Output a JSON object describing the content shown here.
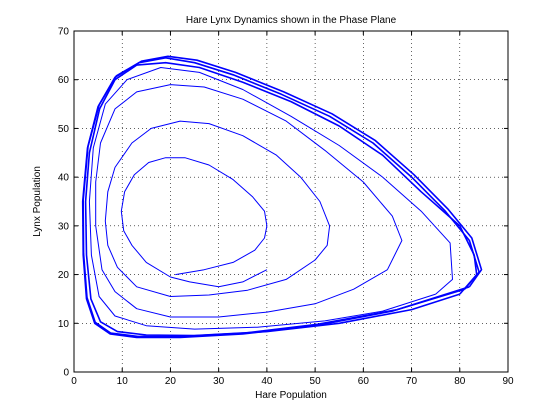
{
  "chart_data": {
    "type": "line",
    "title": "Hare Lynx Dynamics shown in the Phase Plane",
    "xlabel": "Hare Population",
    "ylabel": "Lynx Population",
    "xlim": [
      0,
      90
    ],
    "ylim": [
      0,
      70
    ],
    "xticks": [
      "0",
      "10",
      "20",
      "30",
      "40",
      "50",
      "60",
      "70",
      "80",
      "90"
    ],
    "yticks": [
      "0",
      "10",
      "20",
      "30",
      "40",
      "50",
      "60",
      "70"
    ],
    "grid": "dotted",
    "line_color": "#0000ff",
    "series": [
      {
        "x": [
          21,
          27,
          33,
          37.5,
          39.5,
          40,
          39.5,
          37,
          33,
          28,
          23,
          19,
          15.5,
          12.5,
          10.5,
          9.8,
          10.3,
          12,
          15,
          20,
          24,
          30,
          35,
          40
        ],
        "y": [
          20,
          21,
          22.5,
          25,
          27.5,
          30,
          33,
          36,
          39.5,
          42.5,
          44,
          44,
          43,
          40.5,
          37,
          33,
          29,
          26,
          22.5,
          19.5,
          18.5,
          17.5,
          18.5,
          21
        ]
      },
      {
        "x": [
          50,
          52.5,
          53,
          51,
          47,
          42,
          35,
          28,
          22,
          16,
          12,
          8.5,
          7,
          6.5,
          7,
          9,
          13,
          20,
          28,
          36,
          44,
          50
        ],
        "y": [
          23,
          26,
          30,
          35,
          40,
          44.5,
          48.5,
          51,
          51.5,
          50,
          47,
          42,
          37,
          31,
          26,
          21.5,
          17.5,
          15.5,
          15.8,
          16.8,
          19,
          23
        ]
      },
      {
        "x": [
          65,
          68,
          66,
          60,
          52,
          44,
          35,
          27,
          20,
          13,
          8.5,
          5.5,
          4.5,
          4.5,
          5.8,
          8.5,
          13,
          20,
          30,
          40,
          50,
          58,
          65
        ],
        "y": [
          21,
          27,
          32,
          39,
          45.5,
          51.5,
          56,
          58.5,
          59,
          57.5,
          54,
          47,
          39,
          30,
          21,
          16.5,
          13,
          11.3,
          11.3,
          12.3,
          14,
          17,
          21
        ]
      },
      {
        "x": [
          75,
          78.5,
          78,
          72,
          64,
          55,
          45,
          35,
          26,
          18,
          11,
          6.5,
          4,
          3.2,
          3.6,
          5.2,
          8.5,
          15,
          25,
          38,
          52,
          64,
          75
        ],
        "y": [
          16,
          19,
          26.5,
          33,
          40,
          46.5,
          52.5,
          58,
          61.5,
          62.5,
          60,
          55,
          46,
          35,
          24,
          15.5,
          11.5,
          9.5,
          8.8,
          9.2,
          10.5,
          12.5,
          16
        ]
      },
      {
        "x": [
          80,
          83.5,
          83,
          80,
          72,
          64,
          55,
          45,
          35,
          26,
          19,
          13,
          8.5,
          5.3,
          3.2,
          2.4,
          2.6,
          3.5,
          5.5,
          9,
          15,
          25,
          40,
          55,
          70,
          80
        ],
        "y": [
          16,
          20,
          24,
          30,
          37,
          44.5,
          50.5,
          55.5,
          59.5,
          62.5,
          63.5,
          63,
          60,
          54,
          45,
          35,
          24,
          15,
          10.3,
          8.3,
          7.6,
          7.5,
          8.3,
          10,
          12.8,
          16
        ]
      },
      {
        "x": [
          81,
          84,
          82,
          77,
          70,
          62,
          53,
          43,
          33,
          25,
          19,
          13.5,
          8.5,
          5,
          2.8,
          1.8,
          1.9,
          2.6,
          4.3,
          7.5,
          13,
          22,
          35,
          50,
          66,
          81
        ],
        "y": [
          17,
          20.5,
          27,
          33,
          40,
          47,
          52.5,
          57,
          61,
          63.5,
          64.5,
          63.5,
          60.5,
          54.5,
          46,
          35,
          24,
          15,
          10,
          7.8,
          7.1,
          7.1,
          7.8,
          9.5,
          12.5,
          17
        ]
      },
      {
        "x": [
          82,
          84.5,
          82.5,
          77.5,
          70.5,
          62.5,
          53.5,
          43.5,
          33.5,
          25.5,
          19.5,
          14,
          8.8,
          5.2,
          2.9,
          1.9,
          2,
          2.7,
          4.4,
          7.6,
          13.2,
          22.3,
          35.5,
          50.5,
          67,
          82
        ],
        "y": [
          17.5,
          21,
          27.5,
          33.5,
          40.5,
          47.5,
          53,
          57.5,
          61.5,
          64,
          64.8,
          63.8,
          60.8,
          54.8,
          46.3,
          35.3,
          24.3,
          15.3,
          10.2,
          8,
          7.3,
          7.3,
          8,
          9.8,
          12.8,
          17.5
        ]
      }
    ]
  }
}
